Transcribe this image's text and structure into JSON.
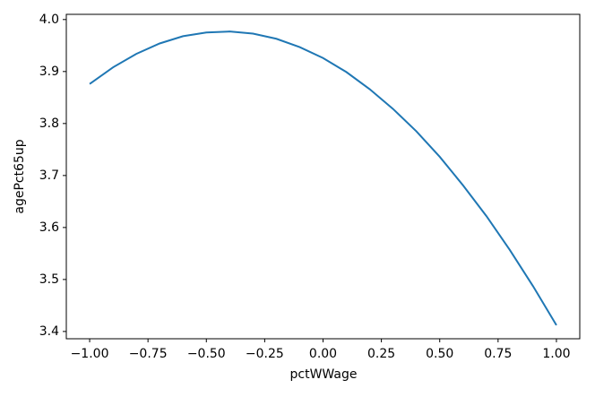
{
  "chart_data": {
    "type": "line",
    "x_label": "pctWWage",
    "y_label": "agePct65up",
    "x": [
      -1,
      -0.9,
      -0.8,
      -0.7,
      -0.6,
      -0.5,
      -0.4,
      -0.3,
      -0.2,
      -0.1,
      0,
      0.1,
      0.2,
      0.3,
      0.4,
      0.5,
      0.6,
      0.7,
      0.8,
      0.9,
      1
    ],
    "series": [
      {
        "color": "#1f77b4",
        "values": [
          3.876,
          3.908,
          3.934,
          3.954,
          3.968,
          3.975,
          3.977,
          3.973,
          3.963,
          3.947,
          3.926,
          3.899,
          3.866,
          3.828,
          3.785,
          3.736,
          3.681,
          3.622,
          3.557,
          3.487,
          3.412
        ]
      }
    ],
    "xlim": [
      -1.1,
      1.1
    ],
    "ylim": [
      3.386,
      4.01
    ],
    "xticks": [
      {
        "value": -1,
        "label": "−1.00"
      },
      {
        "value": -0.75,
        "label": "−0.75"
      },
      {
        "value": -0.5,
        "label": "−0.50"
      },
      {
        "value": -0.25,
        "label": "−0.25"
      },
      {
        "value": 0,
        "label": "0.00"
      },
      {
        "value": 0.25,
        "label": "0.25"
      },
      {
        "value": 0.5,
        "label": "0.50"
      },
      {
        "value": 0.75,
        "label": "0.75"
      },
      {
        "value": 1,
        "label": "1.00"
      }
    ],
    "yticks": [
      3.4,
      3.5,
      3.6,
      3.7,
      3.8,
      3.9,
      {
        "value": 4,
        "label": "4.0"
      }
    ],
    "grid": false
  }
}
